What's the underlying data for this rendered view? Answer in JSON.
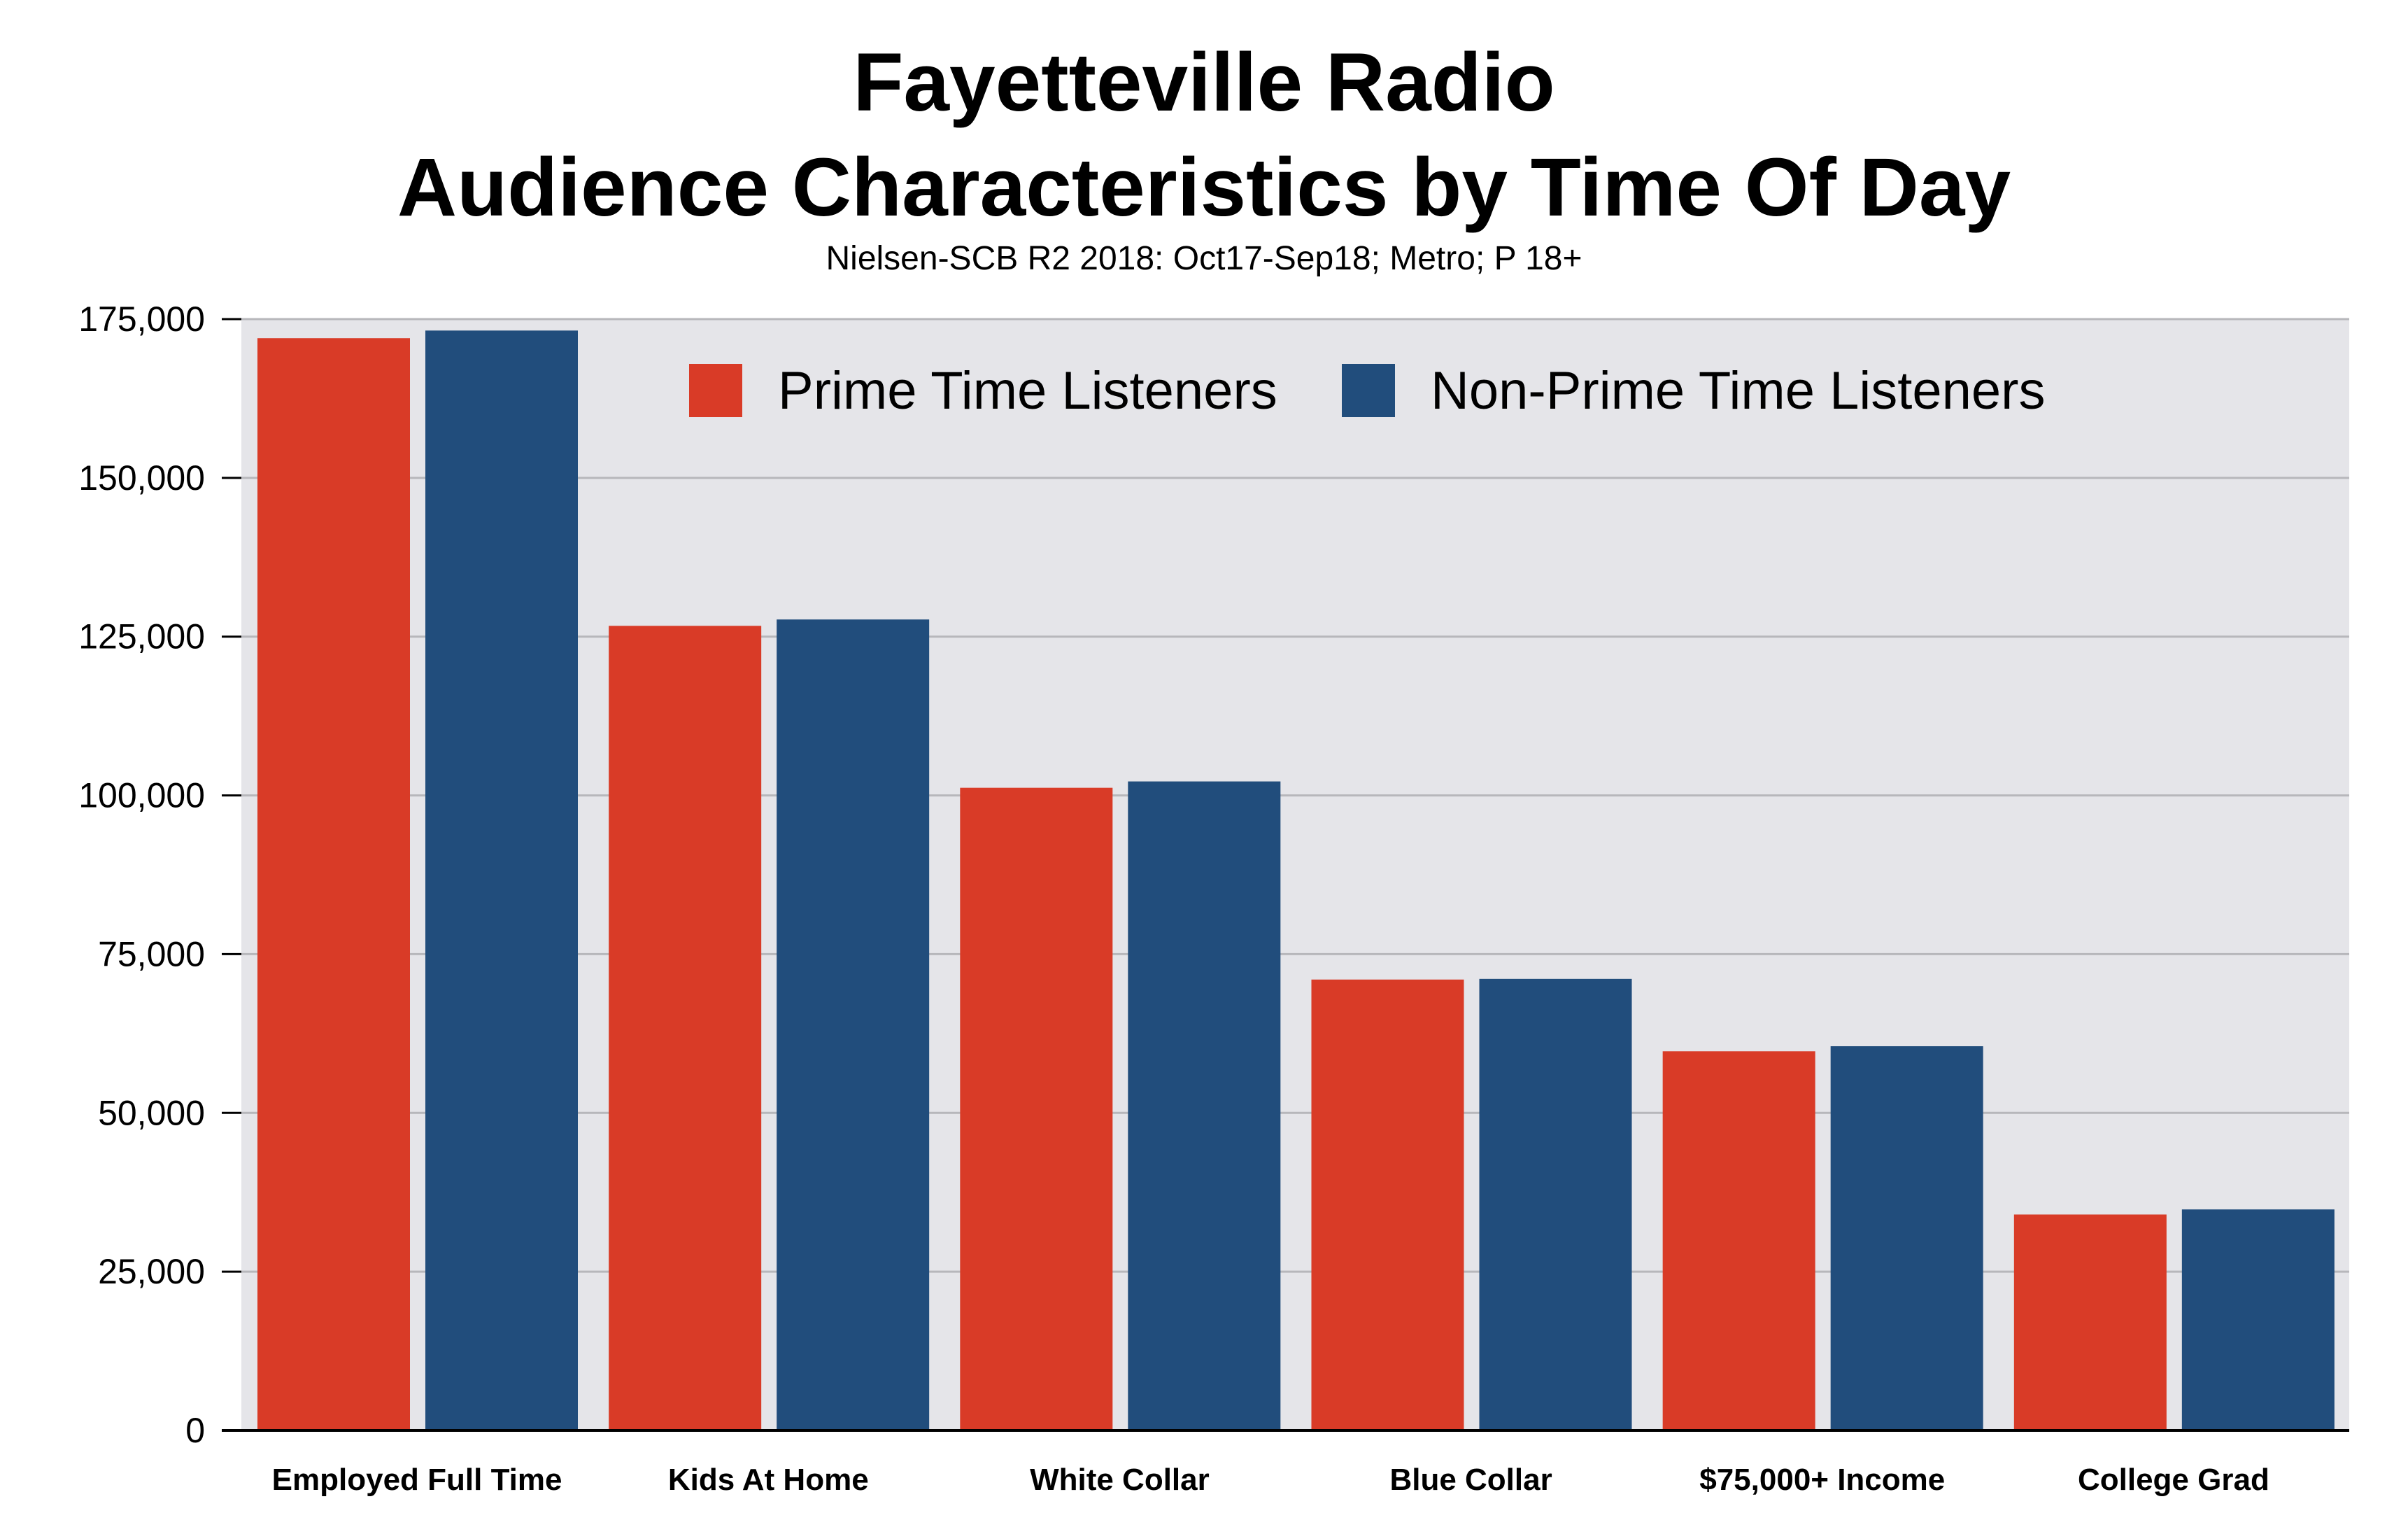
{
  "colors": {
    "prime": "#d93b27",
    "non_prime": "#214d7c",
    "plot_background": "#e5e5e9",
    "gridline": "#b7b7bb",
    "axis": "#000000"
  },
  "chart_data": {
    "type": "bar",
    "title_line1": "Fayetteville Radio",
    "title_line2": "Audience Characteristics by Time Of Day",
    "subtitle": "Nielsen-SCB R2 2018: Oct17-Sep18; Metro; P 18+",
    "xlabel": "",
    "ylabel": "",
    "categories": [
      "Employed Full Time",
      "Kids At Home",
      "White Collar",
      "Blue Collar",
      "$75,000+ Income",
      "College Grad"
    ],
    "series": [
      {
        "name": "Prime Time Listeners",
        "color": "#d93b27",
        "values": [
          172000,
          126700,
          101200,
          71000,
          59700,
          34000
        ]
      },
      {
        "name": "Non-Prime Time Listeners",
        "color": "#214d7c",
        "values": [
          173200,
          127700,
          102200,
          71100,
          60500,
          34800
        ]
      }
    ],
    "ylim": [
      0,
      175000
    ],
    "yticks": [
      0,
      25000,
      50000,
      75000,
      100000,
      125000,
      150000,
      175000
    ],
    "ytick_labels": [
      "0",
      "25,000",
      "50,000",
      "75,000",
      "100,000",
      "125,000",
      "150,000",
      "175,000"
    ],
    "grid": true,
    "legend_placement": "top-center"
  }
}
